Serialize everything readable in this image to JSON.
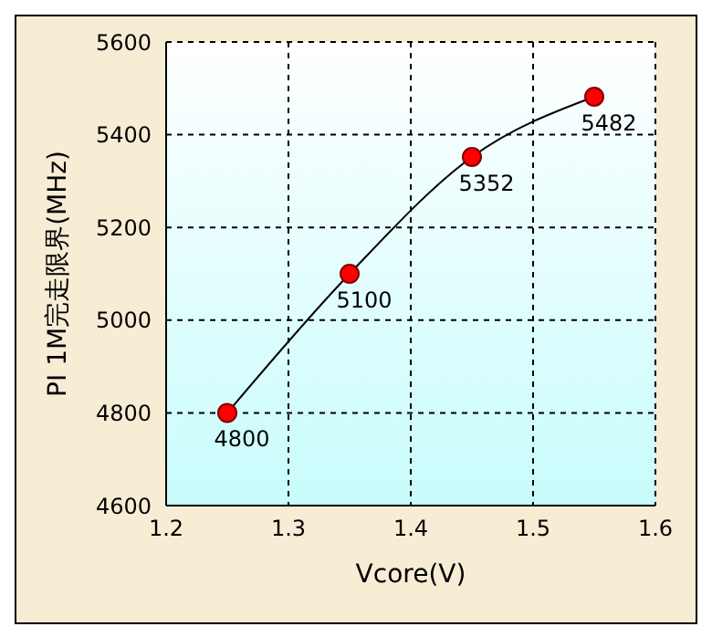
{
  "chart_data": {
    "type": "line",
    "xlabel": "Vcore(V)",
    "ylabel": "PI 1M完走限界(MHz)",
    "x": [
      1.25,
      1.35,
      1.45,
      1.55
    ],
    "series": [
      {
        "color": "#ff0000",
        "values": [
          4800,
          5100,
          5352,
          5482
        ]
      }
    ],
    "xlim": [
      1.2,
      1.6
    ],
    "xticks": [
      1.2,
      1.3,
      1.4,
      1.5,
      1.6
    ],
    "ylim": [
      4600,
      5600
    ],
    "yticks": [
      4600,
      4800,
      5000,
      5200,
      5400,
      5600
    ],
    "grid": true,
    "marker": "circle",
    "line_style": "solid",
    "data_labels": true
  }
}
